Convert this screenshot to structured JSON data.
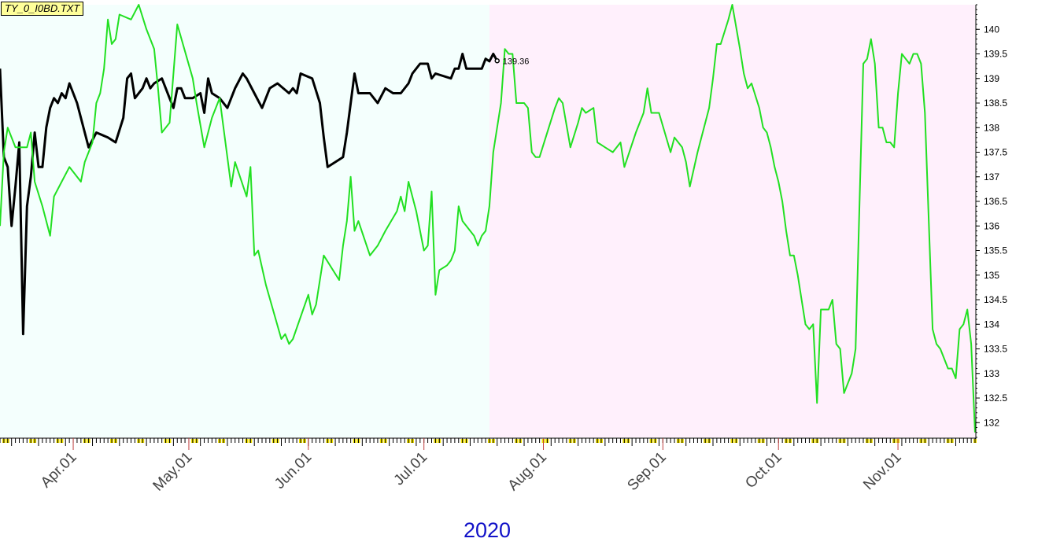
{
  "file_label": "TY_0_I0BD.TXT",
  "chart_data": {
    "type": "line",
    "year_label": "2020",
    "ylim": [
      131.7,
      140.5
    ],
    "y_ticks": [
      132,
      132.5,
      133,
      133.5,
      134,
      134.5,
      135,
      135.5,
      136,
      136.5,
      137,
      137.5,
      138,
      138.5,
      139,
      139.5,
      140
    ],
    "y_tick_labels": [
      "132",
      "132.5",
      "133",
      "133.5",
      "134",
      "134.5",
      "135",
      "135.5",
      "136",
      "136.5",
      "137",
      "137.5",
      "138",
      "138.5",
      "139",
      "139.5",
      "140"
    ],
    "x_start": "2020-03-13",
    "x_end": "2020-11-21",
    "x_tick_labels": [
      "Apr.01",
      "May.01",
      "Jun.01",
      "Jul.01",
      "Aug.01",
      "Sep.01",
      "Oct.01",
      "Nov.01"
    ],
    "x_tick_dates": [
      "2020-04-01",
      "2020-05-01",
      "2020-06-01",
      "2020-07-01",
      "2020-08-01",
      "2020-09-01",
      "2020-10-01",
      "2020-11-01"
    ],
    "shaded_regions": [
      {
        "from": "2020-03-13",
        "to": "2020-07-18",
        "color": "#f4fffd"
      },
      {
        "from": "2020-07-18",
        "to": "2020-11-21",
        "color": "#fff0fc"
      }
    ],
    "last_value_label": "139.36",
    "series": [
      {
        "color": "#000000",
        "points": [
          [
            "2020-03-13",
            139.2
          ],
          [
            "2020-03-14",
            137.4
          ],
          [
            "2020-03-15",
            137.2
          ],
          [
            "2020-03-16",
            136.0
          ],
          [
            "2020-03-17",
            136.8
          ],
          [
            "2020-03-18",
            137.7
          ],
          [
            "2020-03-19",
            133.8
          ],
          [
            "2020-03-20",
            136.4
          ],
          [
            "2020-03-21",
            137.0
          ],
          [
            "2020-03-22",
            137.9
          ],
          [
            "2020-03-23",
            137.2
          ],
          [
            "2020-03-24",
            137.2
          ],
          [
            "2020-03-25",
            138.0
          ],
          [
            "2020-03-26",
            138.4
          ],
          [
            "2020-03-27",
            138.6
          ],
          [
            "2020-03-28",
            138.5
          ],
          [
            "2020-03-29",
            138.7
          ],
          [
            "2020-03-30",
            138.6
          ],
          [
            "2020-03-31",
            138.9
          ],
          [
            "2020-04-02",
            138.5
          ],
          [
            "2020-04-03",
            138.2
          ],
          [
            "2020-04-05",
            137.6
          ],
          [
            "2020-04-07",
            137.9
          ],
          [
            "2020-04-10",
            137.8
          ],
          [
            "2020-04-12",
            137.7
          ],
          [
            "2020-04-14",
            138.2
          ],
          [
            "2020-04-15",
            139.0
          ],
          [
            "2020-04-16",
            139.1
          ],
          [
            "2020-04-17",
            138.6
          ],
          [
            "2020-04-19",
            138.8
          ],
          [
            "2020-04-20",
            139.0
          ],
          [
            "2020-04-21",
            138.8
          ],
          [
            "2020-04-22",
            138.9
          ],
          [
            "2020-04-24",
            139.0
          ],
          [
            "2020-04-26",
            138.6
          ],
          [
            "2020-04-27",
            138.4
          ],
          [
            "2020-04-28",
            138.8
          ],
          [
            "2020-04-29",
            138.8
          ],
          [
            "2020-04-30",
            138.6
          ],
          [
            "2020-05-02",
            138.6
          ],
          [
            "2020-05-04",
            138.7
          ],
          [
            "2020-05-05",
            138.3
          ],
          [
            "2020-05-06",
            139.0
          ],
          [
            "2020-05-07",
            138.7
          ],
          [
            "2020-05-09",
            138.6
          ],
          [
            "2020-05-11",
            138.4
          ],
          [
            "2020-05-13",
            138.8
          ],
          [
            "2020-05-15",
            139.1
          ],
          [
            "2020-05-16",
            139.0
          ],
          [
            "2020-05-18",
            138.7
          ],
          [
            "2020-05-20",
            138.4
          ],
          [
            "2020-05-22",
            138.8
          ],
          [
            "2020-05-24",
            138.9
          ],
          [
            "2020-05-27",
            138.7
          ],
          [
            "2020-05-28",
            138.8
          ],
          [
            "2020-05-29",
            138.7
          ],
          [
            "2020-05-30",
            139.1
          ],
          [
            "2020-06-02",
            139.0
          ],
          [
            "2020-06-04",
            138.5
          ],
          [
            "2020-06-05",
            137.8
          ],
          [
            "2020-06-06",
            137.2
          ],
          [
            "2020-06-08",
            137.3
          ],
          [
            "2020-06-10",
            137.4
          ],
          [
            "2020-06-11",
            137.9
          ],
          [
            "2020-06-13",
            139.1
          ],
          [
            "2020-06-14",
            138.7
          ],
          [
            "2020-06-17",
            138.7
          ],
          [
            "2020-06-19",
            138.5
          ],
          [
            "2020-06-21",
            138.8
          ],
          [
            "2020-06-23",
            138.7
          ],
          [
            "2020-06-25",
            138.7
          ],
          [
            "2020-06-27",
            138.9
          ],
          [
            "2020-06-28",
            139.1
          ],
          [
            "2020-06-30",
            139.3
          ],
          [
            "2020-07-02",
            139.3
          ],
          [
            "2020-07-03",
            139.0
          ],
          [
            "2020-07-04",
            139.1
          ],
          [
            "2020-07-08",
            139.0
          ],
          [
            "2020-07-09",
            139.2
          ],
          [
            "2020-07-10",
            139.2
          ],
          [
            "2020-07-11",
            139.5
          ],
          [
            "2020-07-12",
            139.2
          ],
          [
            "2020-07-16",
            139.2
          ],
          [
            "2020-07-17",
            139.4
          ],
          [
            "2020-07-18",
            139.35
          ],
          [
            "2020-07-19",
            139.5
          ],
          [
            "2020-07-20",
            139.36
          ]
        ]
      },
      {
        "color": "#22e022",
        "points": [
          [
            "2020-03-13",
            136.0
          ],
          [
            "2020-03-14",
            137.5
          ],
          [
            "2020-03-15",
            138.0
          ],
          [
            "2020-03-17",
            137.6
          ],
          [
            "2020-03-19",
            137.6
          ],
          [
            "2020-03-20",
            137.6
          ],
          [
            "2020-03-21",
            137.9
          ],
          [
            "2020-03-22",
            136.9
          ],
          [
            "2020-03-24",
            136.4
          ],
          [
            "2020-03-26",
            135.8
          ],
          [
            "2020-03-27",
            136.6
          ],
          [
            "2020-03-29",
            136.9
          ],
          [
            "2020-03-31",
            137.2
          ],
          [
            "2020-04-03",
            136.9
          ],
          [
            "2020-04-04",
            137.3
          ],
          [
            "2020-04-06",
            137.7
          ],
          [
            "2020-04-07",
            138.5
          ],
          [
            "2020-04-08",
            138.7
          ],
          [
            "2020-04-09",
            139.2
          ],
          [
            "2020-04-10",
            140.2
          ],
          [
            "2020-04-11",
            139.7
          ],
          [
            "2020-04-12",
            139.8
          ],
          [
            "2020-04-13",
            140.3
          ],
          [
            "2020-04-16",
            140.2
          ],
          [
            "2020-04-18",
            140.5
          ],
          [
            "2020-04-20",
            140.0
          ],
          [
            "2020-04-22",
            139.6
          ],
          [
            "2020-04-23",
            138.8
          ],
          [
            "2020-04-24",
            137.9
          ],
          [
            "2020-04-26",
            138.1
          ],
          [
            "2020-04-28",
            140.1
          ],
          [
            "2020-05-02",
            139.0
          ],
          [
            "2020-05-03",
            138.5
          ],
          [
            "2020-05-05",
            137.6
          ],
          [
            "2020-05-07",
            138.2
          ],
          [
            "2020-05-09",
            138.6
          ],
          [
            "2020-05-11",
            137.4
          ],
          [
            "2020-05-12",
            136.8
          ],
          [
            "2020-05-13",
            137.3
          ],
          [
            "2020-05-16",
            136.6
          ],
          [
            "2020-05-17",
            137.2
          ],
          [
            "2020-05-18",
            135.4
          ],
          [
            "2020-05-19",
            135.5
          ],
          [
            "2020-05-21",
            134.8
          ],
          [
            "2020-05-25",
            133.7
          ],
          [
            "2020-05-26",
            133.8
          ],
          [
            "2020-05-27",
            133.6
          ],
          [
            "2020-05-28",
            133.7
          ],
          [
            "2020-06-01",
            134.6
          ],
          [
            "2020-06-02",
            134.2
          ],
          [
            "2020-06-03",
            134.4
          ],
          [
            "2020-06-05",
            135.4
          ],
          [
            "2020-06-09",
            134.9
          ],
          [
            "2020-06-10",
            135.6
          ],
          [
            "2020-06-11",
            136.1
          ],
          [
            "2020-06-12",
            137.0
          ],
          [
            "2020-06-13",
            135.9
          ],
          [
            "2020-06-14",
            136.1
          ],
          [
            "2020-06-17",
            135.4
          ],
          [
            "2020-06-19",
            135.6
          ],
          [
            "2020-06-21",
            135.9
          ],
          [
            "2020-06-24",
            136.3
          ],
          [
            "2020-06-25",
            136.6
          ],
          [
            "2020-06-26",
            136.3
          ],
          [
            "2020-06-27",
            136.9
          ],
          [
            "2020-06-29",
            136.3
          ],
          [
            "2020-07-01",
            135.5
          ],
          [
            "2020-07-02",
            135.6
          ],
          [
            "2020-07-03",
            136.7
          ],
          [
            "2020-07-04",
            134.6
          ],
          [
            "2020-07-05",
            135.1
          ],
          [
            "2020-07-07",
            135.2
          ],
          [
            "2020-07-08",
            135.3
          ],
          [
            "2020-07-09",
            135.5
          ],
          [
            "2020-07-10",
            136.4
          ],
          [
            "2020-07-11",
            136.1
          ],
          [
            "2020-07-14",
            135.8
          ],
          [
            "2020-07-15",
            135.6
          ],
          [
            "2020-07-16",
            135.8
          ],
          [
            "2020-07-17",
            135.9
          ],
          [
            "2020-07-18",
            136.4
          ],
          [
            "2020-07-19",
            137.5
          ],
          [
            "2020-07-21",
            138.5
          ],
          [
            "2020-07-22",
            139.6
          ],
          [
            "2020-07-23",
            139.5
          ],
          [
            "2020-07-24",
            139.5
          ],
          [
            "2020-07-25",
            138.5
          ],
          [
            "2020-07-27",
            138.5
          ],
          [
            "2020-07-28",
            138.4
          ],
          [
            "2020-07-29",
            137.5
          ],
          [
            "2020-07-30",
            137.4
          ],
          [
            "2020-07-31",
            137.4
          ],
          [
            "2020-08-04",
            138.4
          ],
          [
            "2020-08-05",
            138.6
          ],
          [
            "2020-08-06",
            138.5
          ],
          [
            "2020-08-08",
            137.6
          ],
          [
            "2020-08-10",
            138.1
          ],
          [
            "2020-08-11",
            138.4
          ],
          [
            "2020-08-12",
            138.3
          ],
          [
            "2020-08-14",
            138.4
          ],
          [
            "2020-08-15",
            137.7
          ],
          [
            "2020-08-17",
            137.6
          ],
          [
            "2020-08-19",
            137.5
          ],
          [
            "2020-08-21",
            137.7
          ],
          [
            "2020-08-22",
            137.2
          ],
          [
            "2020-08-25",
            137.9
          ],
          [
            "2020-08-27",
            138.3
          ],
          [
            "2020-08-28",
            138.8
          ],
          [
            "2020-08-29",
            138.3
          ],
          [
            "2020-08-31",
            138.3
          ],
          [
            "2020-09-03",
            137.5
          ],
          [
            "2020-09-04",
            137.8
          ],
          [
            "2020-09-06",
            137.6
          ],
          [
            "2020-09-07",
            137.3
          ],
          [
            "2020-09-08",
            136.8
          ],
          [
            "2020-09-10",
            137.5
          ],
          [
            "2020-09-13",
            138.4
          ],
          [
            "2020-09-14",
            139.0
          ],
          [
            "2020-09-15",
            139.7
          ],
          [
            "2020-09-16",
            139.7
          ],
          [
            "2020-09-18",
            140.2
          ],
          [
            "2020-09-19",
            140.5
          ],
          [
            "2020-09-21",
            139.6
          ],
          [
            "2020-09-22",
            139.1
          ],
          [
            "2020-09-23",
            138.8
          ],
          [
            "2020-09-24",
            138.9
          ],
          [
            "2020-09-26",
            138.4
          ],
          [
            "2020-09-27",
            138.0
          ],
          [
            "2020-09-28",
            137.9
          ],
          [
            "2020-09-29",
            137.6
          ],
          [
            "2020-09-30",
            137.2
          ],
          [
            "2020-10-01",
            136.9
          ],
          [
            "2020-10-02",
            136.5
          ],
          [
            "2020-10-03",
            135.9
          ],
          [
            "2020-10-04",
            135.4
          ],
          [
            "2020-10-05",
            135.4
          ],
          [
            "2020-10-06",
            135.0
          ],
          [
            "2020-10-07",
            134.5
          ],
          [
            "2020-10-08",
            134.0
          ],
          [
            "2020-10-09",
            133.9
          ],
          [
            "2020-10-10",
            134.0
          ],
          [
            "2020-10-11",
            132.4
          ],
          [
            "2020-10-12",
            134.3
          ],
          [
            "2020-10-13",
            134.3
          ],
          [
            "2020-10-14",
            134.3
          ],
          [
            "2020-10-15",
            134.5
          ],
          [
            "2020-10-16",
            133.6
          ],
          [
            "2020-10-17",
            133.5
          ],
          [
            "2020-10-18",
            132.6
          ],
          [
            "2020-10-20",
            133.0
          ],
          [
            "2020-10-21",
            133.5
          ],
          [
            "2020-10-23",
            139.3
          ],
          [
            "2020-10-24",
            139.4
          ],
          [
            "2020-10-25",
            139.8
          ],
          [
            "2020-10-26",
            139.3
          ],
          [
            "2020-10-27",
            138.0
          ],
          [
            "2020-10-28",
            138.0
          ],
          [
            "2020-10-29",
            137.7
          ],
          [
            "2020-10-30",
            137.7
          ],
          [
            "2020-10-31",
            137.6
          ],
          [
            "2020-11-01",
            138.7
          ],
          [
            "2020-11-02",
            139.5
          ],
          [
            "2020-11-03",
            139.4
          ],
          [
            "2020-11-04",
            139.3
          ],
          [
            "2020-11-05",
            139.5
          ],
          [
            "2020-11-06",
            139.5
          ],
          [
            "2020-11-07",
            139.3
          ],
          [
            "2020-11-08",
            138.3
          ],
          [
            "2020-11-10",
            133.9
          ],
          [
            "2020-11-11",
            133.6
          ],
          [
            "2020-11-12",
            133.5
          ],
          [
            "2020-11-13",
            133.3
          ],
          [
            "2020-11-14",
            133.1
          ],
          [
            "2020-11-15",
            133.1
          ],
          [
            "2020-11-16",
            132.9
          ],
          [
            "2020-11-17",
            133.9
          ],
          [
            "2020-11-18",
            134.0
          ],
          [
            "2020-11-19",
            134.3
          ],
          [
            "2020-11-20",
            133.6
          ],
          [
            "2020-11-21",
            131.8
          ]
        ]
      }
    ]
  }
}
